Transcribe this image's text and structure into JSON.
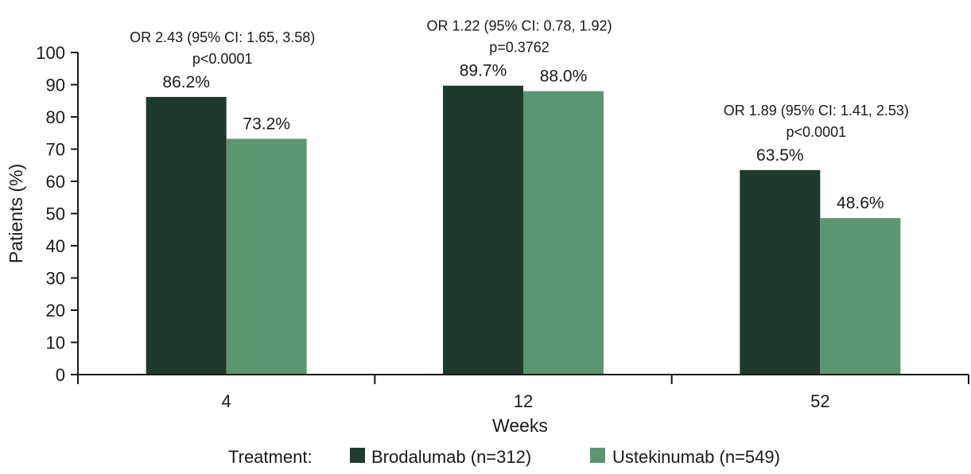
{
  "chart_data": {
    "type": "bar",
    "categories": [
      "4",
      "12",
      "52"
    ],
    "xlabel": "Weeks",
    "ylabel": "Patients (%)",
    "ylim": [
      0,
      100
    ],
    "yticks": [
      0,
      10,
      20,
      30,
      40,
      50,
      60,
      70,
      80,
      90,
      100
    ],
    "series": [
      {
        "name": "Brodalumab (n=312)",
        "color": "#1f3a2c",
        "values": [
          86.2,
          89.7,
          63.5
        ],
        "labels": [
          "86.2%",
          "89.7%",
          "63.5%"
        ]
      },
      {
        "name": "Ustekinumab (n=549)",
        "color": "#5a9672",
        "values": [
          73.2,
          88.0,
          48.6
        ],
        "labels": [
          "73.2%",
          "88.0%",
          "48.6%"
        ]
      }
    ],
    "annotations": [
      {
        "line1": "OR 2.43 (95% CI: 1.65, 3.58)",
        "line2": "p<0.0001"
      },
      {
        "line1": "OR 1.22 (95% CI: 0.78, 1.92)",
        "line2": "p=0.3762"
      },
      {
        "line1": "OR 1.89 (95% CI: 1.41, 2.53)",
        "line2": "p<0.0001"
      }
    ],
    "legend": {
      "title": "Treatment:",
      "placement": "bottom"
    },
    "grid": false
  }
}
